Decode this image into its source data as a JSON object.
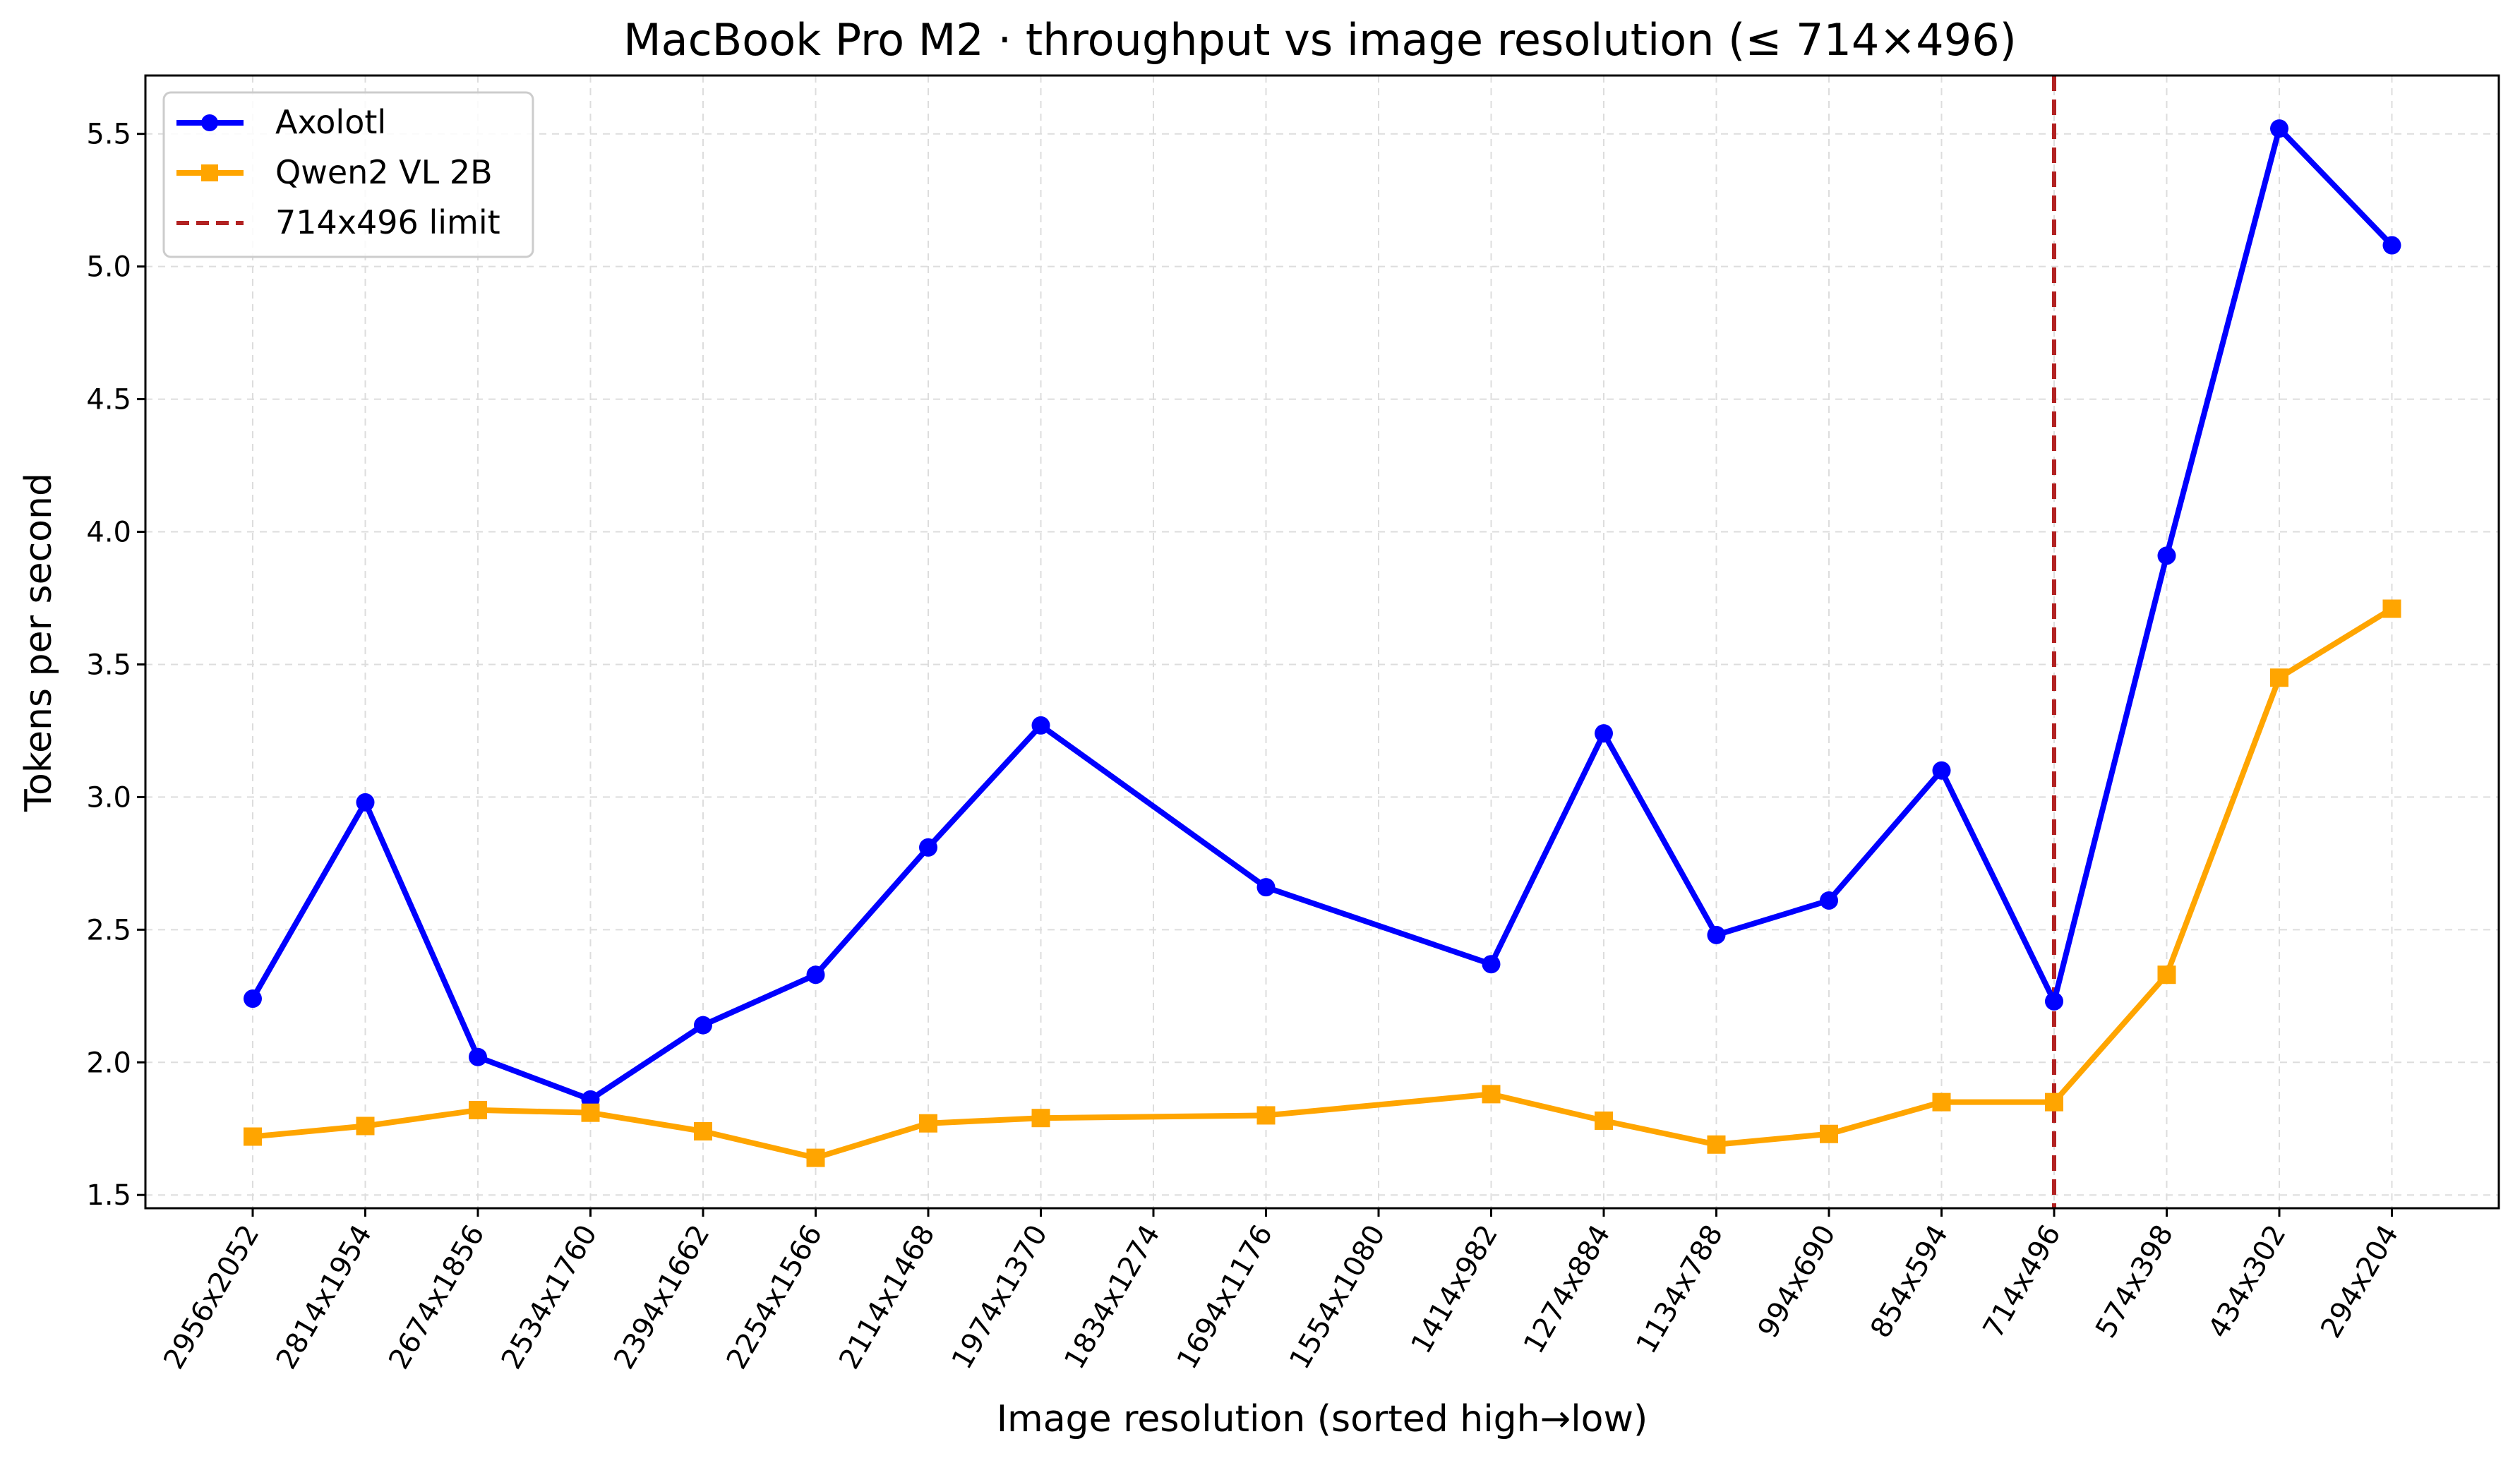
{
  "chart_data": {
    "type": "line",
    "title": "MacBook Pro M2 · throughput vs image resolution (≤ 714×496)",
    "xlabel": "Image resolution (sorted high→low)",
    "ylabel": "Tokens per second",
    "categories": [
      "2956x2052",
      "2814x1954",
      "2674x1856",
      "2534x1760",
      "2394x1662",
      "2254x1566",
      "2114x1468",
      "1974x1370",
      "1834x1274",
      "1694x1176",
      "1554x1080",
      "1414x982",
      "1274x884",
      "1134x788",
      "994x690",
      "854x594",
      "714x496",
      "574x398",
      "434x302",
      "294x204"
    ],
    "ylim": [
      1.45,
      5.72
    ],
    "yticks": [
      "1.5",
      "2.0",
      "2.5",
      "3.0",
      "3.5",
      "4.0",
      "4.5",
      "5.0",
      "5.5"
    ],
    "grid": true,
    "legend_position": "top-left",
    "series": [
      {
        "name": "Axolotl",
        "color": "#0000ff",
        "marker": "circle",
        "values": [
          2.24,
          2.98,
          2.02,
          1.86,
          2.14,
          2.33,
          2.81,
          3.27,
          null,
          2.66,
          null,
          2.37,
          3.24,
          2.48,
          2.61,
          3.1,
          2.23,
          3.91,
          5.52,
          5.08
        ]
      },
      {
        "name": "Qwen2 VL 2B",
        "color": "#ffa500",
        "marker": "square",
        "values": [
          1.72,
          1.76,
          1.82,
          1.81,
          1.74,
          1.64,
          1.77,
          1.79,
          null,
          1.8,
          null,
          1.88,
          1.78,
          1.69,
          1.73,
          1.85,
          1.85,
          2.33,
          3.45,
          3.71
        ]
      }
    ],
    "reference_line": {
      "name": "714x496 limit",
      "category": "714x496",
      "color": "#b22222",
      "style": "dashed"
    }
  }
}
